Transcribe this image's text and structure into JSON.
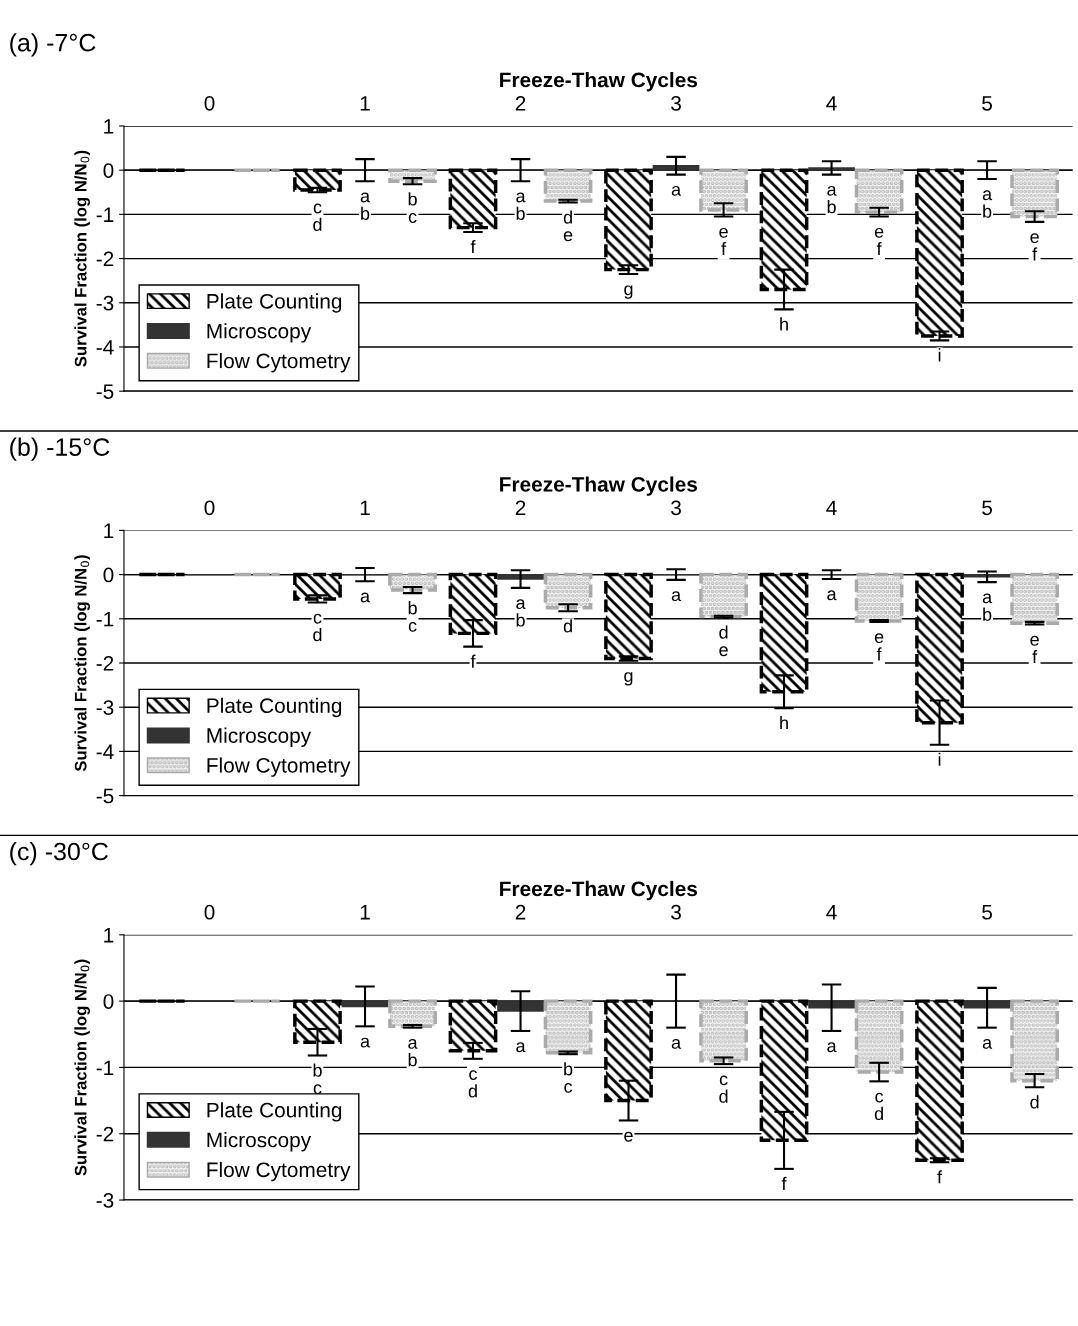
{
  "chart_data": [
    {
      "type": "bar",
      "title": "(a) -7°C",
      "xlabel": "Freeze-Thaw Cycles",
      "ylabel": "Survival Fraction (log N/N$_{0}$)",
      "categories": [
        "0",
        "1",
        "2",
        "3",
        "4",
        "5"
      ],
      "ylim": [
        -5,
        1
      ],
      "yticks": [
        1,
        0,
        -1,
        -2,
        -3,
        -4,
        -5
      ],
      "grid": "y",
      "legend": "bottom left",
      "series": [
        {
          "name": "Plate Counting",
          "color": "#000000",
          "values": [
            0,
            -0.45,
            -1.3,
            -2.25,
            -2.7,
            -3.75
          ],
          "errors": [
            null,
            0.05,
            0.1,
            0.1,
            0.45,
            0.1
          ],
          "value_labels": [
            null,
            "c\nd",
            "f",
            "g",
            "h",
            "i"
          ]
        },
        {
          "name": "Microscopy",
          "color": "#333333",
          "values": [
            0,
            0.0,
            0.0,
            0.1,
            0.05,
            0.0
          ],
          "errors": [
            null,
            0.25,
            0.25,
            0.2,
            0.15,
            0.2
          ],
          "value_labels": [
            null,
            "a\nb",
            "a\nb",
            "a",
            "a\nb",
            "a\nb"
          ]
        },
        {
          "name": "Flow Cytometry",
          "color": "#aaaaaa",
          "values": [
            0,
            -0.25,
            -0.7,
            -0.9,
            -0.95,
            -1.05
          ],
          "errors": [
            null,
            0.07,
            0.03,
            0.15,
            0.1,
            0.12
          ],
          "value_labels": [
            null,
            "b\nc",
            "d\ne",
            "e\nf",
            "e\nf",
            "e\nf"
          ]
        }
      ]
    },
    {
      "type": "bar",
      "title": "(b) -15°C",
      "xlabel": "Freeze-Thaw Cycles",
      "ylabel": "Survival Fraction (log N/N$_{0}$)",
      "categories": [
        "0",
        "1",
        "2",
        "3",
        "4",
        "5"
      ],
      "ylim": [
        -5,
        1
      ],
      "yticks": [
        1,
        0,
        -1,
        -2,
        -3,
        -4,
        -5
      ],
      "grid": "y",
      "legend": "bottom left",
      "series": [
        {
          "name": "Plate Counting",
          "color": "#000000",
          "values": [
            0,
            -0.55,
            -1.33,
            -1.9,
            -2.65,
            -3.35
          ],
          "errors": [
            null,
            0.08,
            0.3,
            0.05,
            0.37,
            0.5
          ],
          "value_labels": [
            null,
            "c\nd",
            "f",
            "g",
            "h",
            "i"
          ]
        },
        {
          "name": "Microscopy",
          "color": "#333333",
          "values": [
            0,
            0.0,
            -0.1,
            0.0,
            0.0,
            -0.05
          ],
          "errors": [
            null,
            0.15,
            0.2,
            0.12,
            0.1,
            0.12
          ],
          "value_labels": [
            null,
            "a",
            "a\nb",
            "a",
            "a",
            "a\nb"
          ]
        },
        {
          "name": "Flow Cytometry",
          "color": "#aaaaaa",
          "values": [
            0,
            -0.35,
            -0.75,
            -0.95,
            -1.05,
            -1.1
          ],
          "errors": [
            null,
            0.07,
            0.08,
            0.02,
            0.02,
            0.03
          ],
          "value_labels": [
            null,
            "b\nc",
            "d",
            "d\ne",
            "e\nf",
            "e\nf"
          ]
        }
      ]
    },
    {
      "type": "bar",
      "title": "(c) -30°C",
      "xlabel": "Freeze-Thaw Cycles",
      "ylabel": "Survival Fraction (log N/N$_{0}$)",
      "categories": [
        "0",
        "1",
        "2",
        "3",
        "4",
        "5"
      ],
      "ylim": [
        -3,
        1
      ],
      "yticks": [
        1,
        0,
        -1,
        -2,
        -3
      ],
      "grid": "y",
      "legend": "bottom left",
      "series": [
        {
          "name": "Plate Counting",
          "color": "#000000",
          "values": [
            0,
            -0.62,
            -0.75,
            -1.5,
            -2.1,
            -2.4
          ],
          "errors": [
            null,
            0.2,
            0.12,
            0.3,
            0.43,
            0.03
          ],
          "value_labels": [
            null,
            "b\nc\nd",
            "c\nd",
            "e",
            "f",
            "f"
          ]
        },
        {
          "name": "Microscopy",
          "color": "#333333",
          "values": [
            0,
            -0.08,
            -0.15,
            0.0,
            -0.1,
            -0.1
          ],
          "errors": [
            null,
            0.3,
            0.3,
            0.4,
            0.35,
            0.3
          ],
          "value_labels": [
            null,
            "a",
            "a",
            "a",
            "a",
            "a"
          ]
        },
        {
          "name": "Flow Cytometry",
          "color": "#aaaaaa",
          "values": [
            0,
            -0.38,
            -0.78,
            -0.9,
            -1.07,
            -1.2
          ],
          "errors": [
            null,
            0.02,
            0.02,
            0.05,
            0.14,
            0.1
          ],
          "value_labels": [
            null,
            "a\nb",
            "b\nc",
            "c\nd",
            "c\nd",
            "d"
          ]
        }
      ]
    }
  ]
}
